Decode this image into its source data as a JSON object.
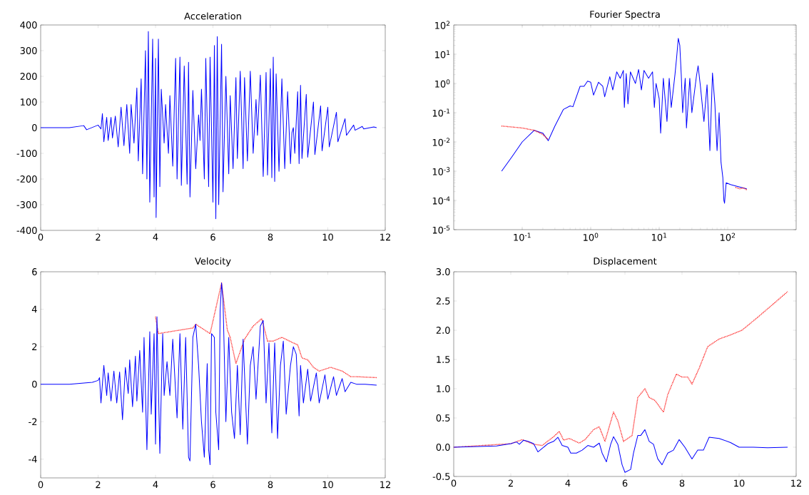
{
  "chart_data": [
    {
      "type": "line",
      "title": "Acceleration",
      "xlim": [
        0,
        12
      ],
      "ylim": [
        -400,
        400
      ],
      "xticks": [
        0,
        2,
        4,
        6,
        8,
        10,
        12
      ],
      "yticks": [
        -400,
        -300,
        -200,
        -100,
        0,
        100,
        200,
        300,
        400
      ],
      "grid": false,
      "series": [
        {
          "color": "#0000ff",
          "line_style": "solid",
          "x": [
            0,
            1.0,
            1.5,
            1.6,
            2.0,
            2.1,
            2.15,
            2.2,
            2.3,
            2.35,
            2.45,
            2.5,
            2.6,
            2.7,
            2.8,
            2.9,
            3.0,
            3.1,
            3.15,
            3.25,
            3.35,
            3.4,
            3.5,
            3.55,
            3.65,
            3.7,
            3.75,
            3.8,
            3.9,
            3.95,
            4.0,
            4.02,
            4.1,
            4.15,
            4.2,
            4.3,
            4.35,
            4.45,
            4.5,
            4.6,
            4.7,
            4.75,
            4.85,
            4.9,
            5.0,
            5.1,
            5.15,
            5.2,
            5.3,
            5.4,
            5.5,
            5.55,
            5.6,
            5.7,
            5.75,
            5.85,
            5.9,
            6.0,
            6.05,
            6.1,
            6.15,
            6.2,
            6.3,
            6.35,
            6.45,
            6.55,
            6.6,
            6.7,
            6.8,
            6.85,
            6.95,
            7.05,
            7.1,
            7.2,
            7.3,
            7.4,
            7.5,
            7.55,
            7.65,
            7.75,
            7.85,
            7.9,
            8.0,
            8.05,
            8.1,
            8.15,
            8.2,
            8.3,
            8.4,
            8.5,
            8.6,
            8.7,
            8.75,
            8.8,
            8.85,
            8.95,
            9.0,
            9.05,
            9.1,
            9.25,
            9.3,
            9.5,
            9.55,
            9.75,
            9.8,
            10.0,
            10.05,
            10.3,
            10.35,
            10.6,
            10.65,
            10.9,
            10.95,
            11.2,
            11.25,
            11.6,
            11.7
          ],
          "values": [
            0,
            0,
            8,
            -8,
            10,
            -5,
            55,
            -55,
            40,
            -50,
            40,
            -40,
            45,
            -75,
            80,
            -70,
            90,
            -100,
            90,
            -60,
            155,
            -130,
            190,
            -180,
            300,
            -200,
            375,
            -290,
            345,
            -270,
            270,
            -350,
            345,
            -230,
            150,
            -60,
            90,
            -100,
            125,
            -150,
            270,
            -200,
            275,
            -225,
            240,
            -220,
            255,
            -270,
            145,
            -160,
            50,
            -50,
            150,
            -200,
            270,
            -230,
            275,
            -290,
            320,
            -355,
            355,
            -300,
            325,
            -250,
            200,
            -180,
            125,
            -160,
            195,
            -120,
            220,
            -160,
            195,
            -130,
            220,
            -100,
            110,
            -30,
            205,
            -190,
            215,
            -185,
            230,
            -195,
            275,
            -210,
            210,
            -170,
            190,
            -160,
            140,
            -140,
            -20,
            0,
            -100,
            140,
            -140,
            165,
            -120,
            130,
            -115,
            100,
            -105,
            85,
            -90,
            80,
            -75,
            60,
            -55,
            35,
            -30,
            10,
            -10,
            5,
            -5,
            3,
            0
          ]
        }
      ]
    },
    {
      "type": "line",
      "title": "Fourier Spectra",
      "log": "xy",
      "xlim": [
        0.01,
        1000
      ],
      "ylim": [
        1e-05,
        100
      ],
      "grid": false,
      "xticks": [
        {
          "value": 0.1,
          "label": "10$^{-1}$"
        },
        {
          "value": 1,
          "label": "10$^{0}$"
        },
        {
          "value": 10,
          "label": "10$^{1}$"
        },
        {
          "value": 100,
          "label": "10$^{2}$"
        }
      ],
      "yticks": [
        {
          "value": 1e-05,
          "label": "10$^{-5}$"
        },
        {
          "value": 0.0001,
          "label": "10$^{-4}$"
        },
        {
          "value": 0.001,
          "label": "10$^{-3}$"
        },
        {
          "value": 0.01,
          "label": "10$^{-2}$"
        },
        {
          "value": 0.1,
          "label": "10$^{-1}$"
        },
        {
          "value": 1,
          "label": "10$^{0}$"
        },
        {
          "value": 10,
          "label": "10$^{1}$"
        },
        {
          "value": 100,
          "label": "10$^{2}$"
        }
      ],
      "series": [
        {
          "color": "#0000ff",
          "line_style": "solid",
          "x": [
            0.05,
            0.07,
            0.1,
            0.15,
            0.2,
            0.24,
            0.3,
            0.4,
            0.5,
            0.55,
            0.7,
            0.8,
            0.9,
            1.0,
            1.1,
            1.3,
            1.5,
            1.6,
            1.9,
            2.1,
            2.4,
            2.7,
            3.0,
            3.1,
            3.3,
            3.5,
            3.8,
            4.5,
            5.0,
            5.5,
            6.0,
            7.0,
            8.0,
            8.5,
            9.0,
            10.0,
            10.5,
            11.5,
            13.0,
            14.0,
            15.0,
            17.0,
            18.0,
            19.0,
            20.0,
            21.0,
            22.0,
            24.0,
            25.0,
            28.0,
            30.0,
            35.0,
            37.0,
            40.0,
            45.0,
            50.0,
            55.0,
            60.0,
            65.0,
            70.0,
            75.0,
            80.0,
            85.0,
            88.0,
            90.0,
            95.0,
            110.0,
            140.0,
            190.0
          ],
          "values": [
            0.001,
            0.003,
            0.01,
            0.025,
            0.02,
            0.011,
            0.035,
            0.13,
            0.17,
            0.16,
            0.8,
            0.8,
            1.2,
            1.1,
            0.4,
            1.1,
            0.8,
            0.35,
            1.7,
            0.6,
            2.5,
            1.5,
            2.8,
            0.15,
            2.2,
            0.2,
            2.5,
            1.0,
            3.0,
            0.6,
            2.8,
            1.5,
            2.5,
            0.15,
            1.0,
            0.3,
            0.02,
            1.5,
            0.05,
            1.5,
            0.15,
            2.0,
            8,
            35,
            20,
            2.0,
            0.1,
            1.5,
            0.03,
            1.5,
            0.1,
            1.8,
            4.0,
            0.8,
            0.05,
            0.9,
            0.005,
            2.3,
            0.2,
            0.005,
            0.1,
            0.002,
            0.0006,
            0.0001,
            8e-05,
            0.0004,
            0.00035,
            0.0003,
            0.00025
          ]
        },
        {
          "color": "#ff0000",
          "line_style": "dotted",
          "x": [
            0.05,
            0.1,
            0.15,
            0.2,
            0.24
          ],
          "values": [
            0.035,
            0.03,
            0.025,
            0.018,
            0.012
          ]
        },
        {
          "color": "#ff0000",
          "line_style": "dotted",
          "x": [
            130,
            150,
            170,
            190
          ],
          "values": [
            0.00028,
            0.00025,
            0.00027,
            0.00023
          ]
        }
      ]
    },
    {
      "type": "line",
      "title": "Velocity",
      "xlim": [
        0,
        12
      ],
      "ylim": [
        -5,
        6
      ],
      "xticks": [
        0,
        2,
        4,
        6,
        8,
        10,
        12
      ],
      "yticks": [
        -4,
        -2,
        0,
        2,
        4,
        6
      ],
      "grid": false,
      "series": [
        {
          "color": "#ff0000",
          "line_style": "dotted",
          "x": [
            4.0,
            4.1,
            5.3,
            5.4,
            5.9,
            6.3,
            6.5,
            6.6,
            6.8,
            7.1,
            7.4,
            7.7,
            7.9,
            8.1,
            8.4,
            8.8,
            8.95,
            9.1,
            9.3,
            9.5,
            9.7,
            9.9,
            10.1,
            10.3,
            10.5,
            10.8,
            11.0,
            11.7
          ],
          "values": [
            3.6,
            2.7,
            3.0,
            3.2,
            2.7,
            5.4,
            2.9,
            2.5,
            1.1,
            2.4,
            3.1,
            3.5,
            2.3,
            2.3,
            2.5,
            2.2,
            2.1,
            1.4,
            1.3,
            0.9,
            0.7,
            0.8,
            0.9,
            0.8,
            0.7,
            0.4,
            0.4,
            0.35
          ]
        },
        {
          "color": "#0000ff",
          "line_style": "solid",
          "x": [
            0,
            1.0,
            1.8,
            2.0,
            2.05,
            2.1,
            2.2,
            2.3,
            2.35,
            2.45,
            2.55,
            2.65,
            2.75,
            2.85,
            2.95,
            3.05,
            3.1,
            3.2,
            3.3,
            3.35,
            3.45,
            3.55,
            3.6,
            3.7,
            3.8,
            3.85,
            3.95,
            4.0,
            4.05,
            4.15,
            4.25,
            4.3,
            4.4,
            4.5,
            4.6,
            4.75,
            4.85,
            4.95,
            5.05,
            5.15,
            5.2,
            5.3,
            5.4,
            5.5,
            5.6,
            5.7,
            5.8,
            5.85,
            5.9,
            5.95,
            6.05,
            6.1,
            6.2,
            6.25,
            6.3,
            6.35,
            6.45,
            6.55,
            6.65,
            6.75,
            6.85,
            6.95,
            7.05,
            7.2,
            7.3,
            7.4,
            7.5,
            7.65,
            7.75,
            7.85,
            7.95,
            8.05,
            8.15,
            8.25,
            8.35,
            8.45,
            8.55,
            8.7,
            8.8,
            8.9,
            9.0,
            9.05,
            9.15,
            9.3,
            9.4,
            9.6,
            9.7,
            9.9,
            10.0,
            10.2,
            10.3,
            10.5,
            10.6,
            10.8,
            11.0,
            11.3,
            11.7
          ],
          "values": [
            0,
            0,
            0.1,
            0.2,
            0.35,
            -1.0,
            1.0,
            -0.6,
            0.6,
            -0.9,
            0.7,
            -1.0,
            0.65,
            -1.9,
            0.9,
            -0.5,
            1.3,
            -1.2,
            1.5,
            -0.9,
            1.8,
            -1.5,
            2.5,
            -3.5,
            2.8,
            -1.6,
            2.7,
            -3.2,
            3.6,
            -3.7,
            2.7,
            -0.6,
            1.2,
            -0.6,
            2.4,
            -1.8,
            2.7,
            -2.4,
            2.5,
            -3.9,
            -4.1,
            2.5,
            3.2,
            1.0,
            -2.0,
            -3.9,
            1.1,
            -3.5,
            -4.3,
            2.7,
            2.5,
            -1.5,
            -3.5,
            3.9,
            5.4,
            4.5,
            -2.0,
            2.5,
            -1.5,
            -2.9,
            1.0,
            -2.7,
            2.4,
            -3.2,
            1.0,
            2.0,
            -0.8,
            3.1,
            3.4,
            -1.0,
            2.2,
            -2.6,
            2.2,
            -2.9,
            1.0,
            2.3,
            -1.6,
            1.0,
            2.0,
            1.6,
            -1.7,
            1.0,
            -1.0,
            0.8,
            -0.9,
            0.6,
            -1.0,
            0.5,
            -0.8,
            0.4,
            -0.6,
            0.3,
            -0.4,
            0.1,
            0.0,
            0.0,
            -0.05
          ]
        }
      ]
    },
    {
      "type": "line",
      "title": "Displacement",
      "xlim": [
        0,
        12
      ],
      "ylim": [
        -0.5,
        3
      ],
      "xticks": [
        0,
        2,
        4,
        6,
        8,
        10,
        12
      ],
      "grid": false,
      "yticks": [
        {
          "value": -0.5,
          "label": "-0.5"
        },
        {
          "value": 0,
          "label": "0.0"
        },
        {
          "value": 0.5,
          "label": "0.5"
        },
        {
          "value": 1,
          "label": "1.0"
        },
        {
          "value": 1.5,
          "label": "1.5"
        },
        {
          "value": 2,
          "label": "2.0"
        },
        {
          "value": 2.5,
          "label": "2.5"
        },
        {
          "value": 3,
          "label": "3.0"
        }
      ],
      "series": [
        {
          "color": "#ff0000",
          "line_style": "dotted",
          "x": [
            0,
            2.0,
            2.4,
            2.8,
            3.1,
            3.5,
            3.7,
            3.85,
            4.05,
            4.4,
            4.6,
            4.9,
            5.1,
            5.3,
            5.6,
            5.75,
            5.95,
            6.25,
            6.45,
            6.7,
            6.85,
            7.05,
            7.35,
            7.5,
            7.8,
            8.0,
            8.2,
            8.35,
            8.6,
            8.9,
            9.3,
            9.7,
            10.1,
            10.6,
            11.2,
            11.7
          ],
          "values": [
            0,
            0.06,
            0.13,
            0.05,
            0.03,
            0.18,
            0.27,
            0.12,
            0.15,
            0.07,
            0.13,
            0.3,
            0.35,
            0.1,
            0.6,
            0.45,
            0.1,
            0.2,
            0.85,
            1.0,
            0.85,
            0.8,
            0.6,
            0.9,
            1.25,
            1.2,
            1.2,
            1.08,
            1.35,
            1.72,
            1.85,
            1.92,
            2.0,
            2.2,
            2.45,
            2.66
          ]
        },
        {
          "color": "#0000ff",
          "line_style": "solid",
          "x": [
            0,
            1.5,
            2.0,
            2.2,
            2.3,
            2.45,
            2.6,
            2.8,
            2.95,
            3.1,
            3.3,
            3.5,
            3.65,
            3.8,
            4.0,
            4.1,
            4.3,
            4.5,
            4.7,
            4.9,
            5.1,
            5.2,
            5.35,
            5.5,
            5.6,
            5.75,
            5.9,
            6.0,
            6.2,
            6.3,
            6.45,
            6.55,
            6.7,
            6.85,
            7.0,
            7.15,
            7.3,
            7.5,
            7.7,
            7.9,
            8.1,
            8.35,
            8.55,
            8.75,
            8.95,
            9.3,
            9.7,
            10.0,
            10.5,
            11.0,
            11.7
          ],
          "values": [
            0,
            0.02,
            0.06,
            0.09,
            0.05,
            0.12,
            0.1,
            0.06,
            -0.08,
            -0.02,
            0.06,
            0.1,
            0.17,
            0.03,
            0.0,
            -0.1,
            -0.1,
            -0.05,
            0.03,
            0.0,
            0.07,
            -0.1,
            -0.25,
            0.05,
            0.18,
            0.05,
            -0.3,
            -0.43,
            -0.38,
            -0.1,
            0.2,
            0.2,
            0.3,
            0.1,
            0.05,
            -0.2,
            -0.3,
            -0.1,
            -0.05,
            0.13,
            0.0,
            -0.2,
            -0.05,
            -0.05,
            0.17,
            0.15,
            0.08,
            0.0,
            0.0,
            -0.01,
            0.0
          ]
        }
      ]
    }
  ]
}
